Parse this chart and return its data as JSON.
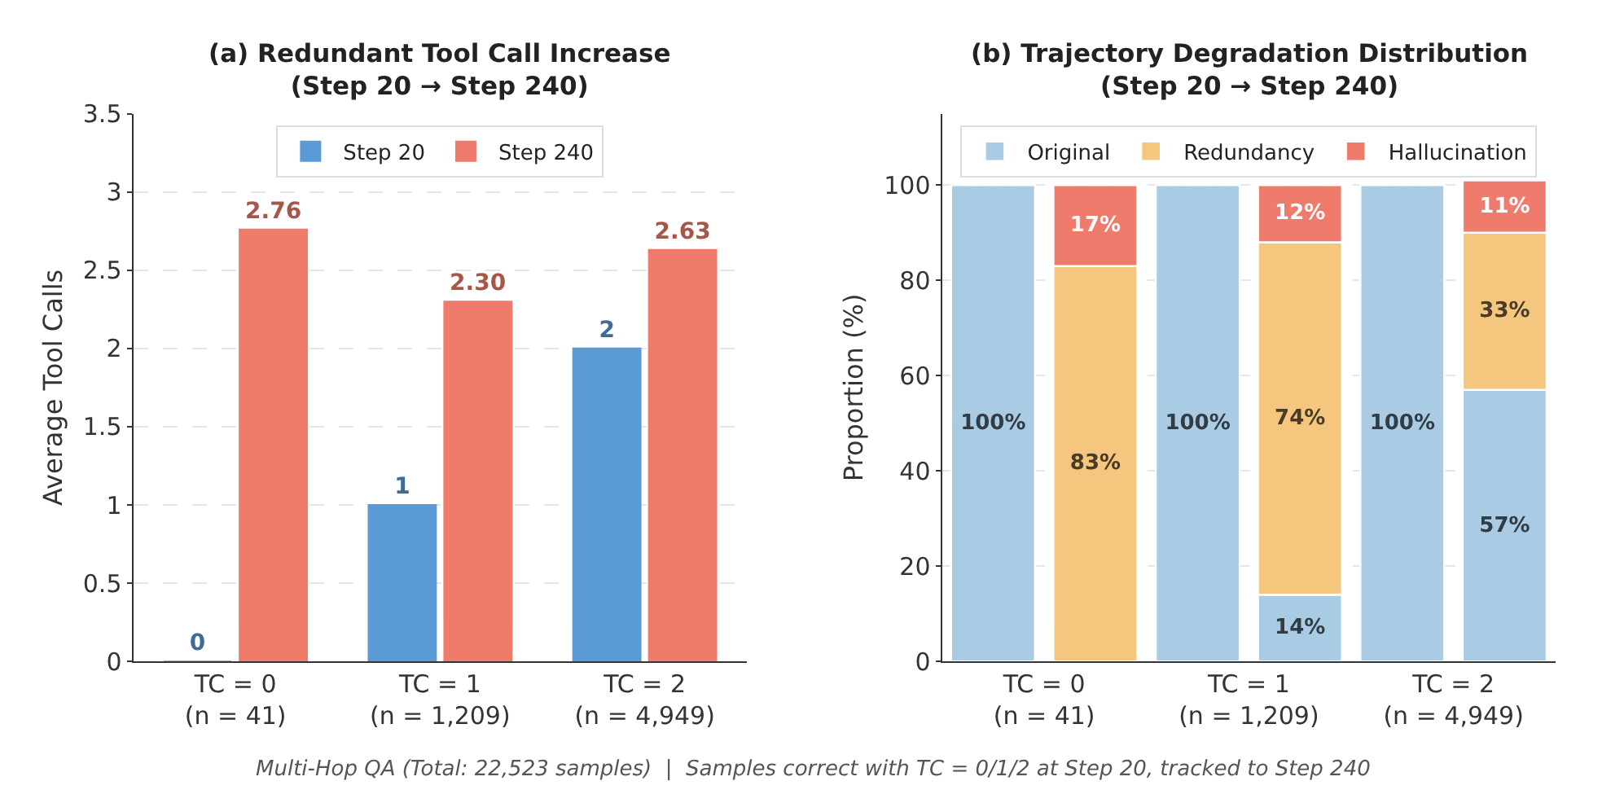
{
  "chart_data": [
    {
      "type": "bar",
      "title": "(a) Redundant Tool Call Increase\n(Step 20 → Step 240)",
      "ylabel": "Average Tool Calls",
      "categories": [
        "TC = 0\n(n = 41)",
        "TC = 1\n(n = 1,209)",
        "TC = 2\n(n = 4,949)"
      ],
      "series": [
        {
          "name": "Step 20",
          "color": "#5b9bd5",
          "values": [
            0,
            1,
            2
          ],
          "value_labels": [
            "0",
            "1",
            "2"
          ]
        },
        {
          "name": "Step 240",
          "color": "#ef7b6b",
          "values": [
            2.76,
            2.3,
            2.63
          ],
          "value_labels": [
            "2.76",
            "2.30",
            "2.63"
          ]
        }
      ],
      "ylim": [
        0,
        3.5
      ],
      "yticks": [
        0,
        0.5,
        1,
        1.5,
        2,
        2.5,
        3,
        3.5
      ],
      "grid": "y",
      "legend": "top",
      "annotations": [
        "Multi-Hop QA (Total: 22,523 samples)  |  Samples correct with TC = 0/1/2 at Step 20, tracked to Step 240"
      ]
    },
    {
      "type": "bar",
      "stacked": true,
      "title": "(b) Trajectory Degradation Distribution\n(Step 20 → Step 240)",
      "ylabel": "Proportion (%)",
      "categories": [
        "TC = 0\n(n = 41)",
        null,
        "TC = 1\n(n = 1,209)",
        null,
        "TC = 2\n(n = 4,949)",
        null
      ],
      "series": [
        {
          "name": "Original",
          "color": "#a9cbe3",
          "values": [
            100,
            0,
            100,
            14,
            100,
            57
          ],
          "value_labels": [
            "100%",
            null,
            "100%",
            "14%",
            "100%",
            "57%"
          ]
        },
        {
          "name": "Redundancy",
          "color": "#f5c77e",
          "values": [
            null,
            83,
            null,
            74,
            null,
            33
          ],
          "value_labels": [
            null,
            "83%",
            null,
            "74%",
            null,
            "33%"
          ]
        },
        {
          "name": "Hallucination",
          "color": "#ee7b6b",
          "values": [
            null,
            17,
            null,
            12,
            null,
            11
          ],
          "value_labels": [
            null,
            "17%",
            null,
            "12%",
            null,
            "11%"
          ]
        }
      ],
      "ylim": [
        0,
        115
      ],
      "yticks": [
        0,
        20,
        40,
        60,
        80,
        100
      ],
      "grid": "y",
      "legend": "top"
    }
  ]
}
